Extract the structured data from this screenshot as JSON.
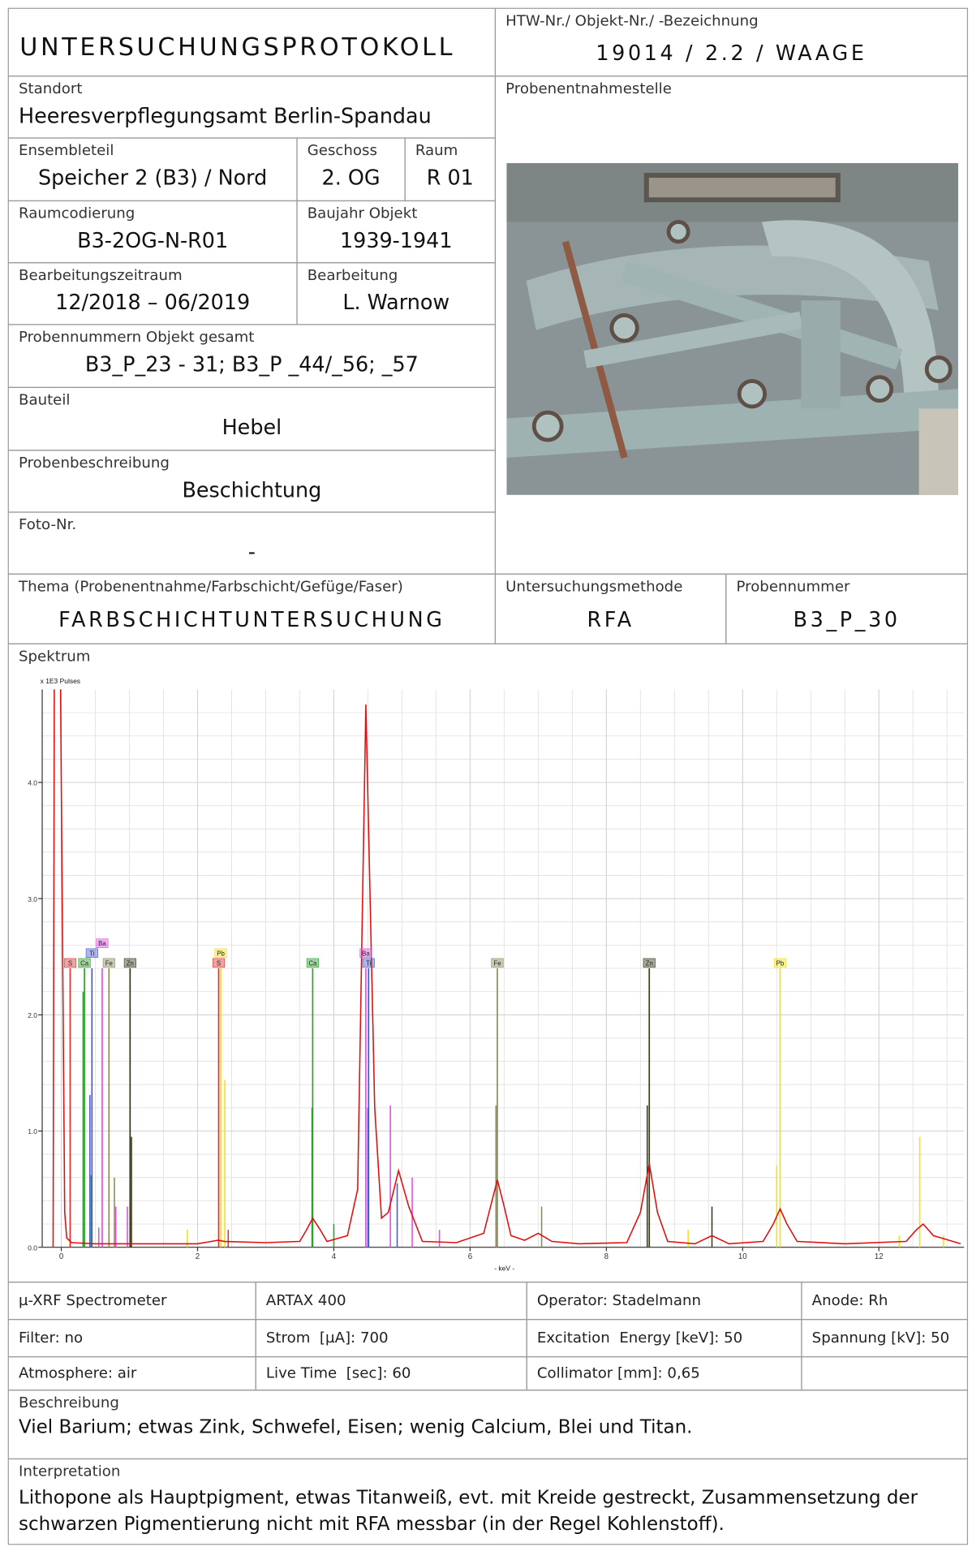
{
  "header": {
    "title": "UNTERSUCHUNGSPROTOKOLL",
    "object_label": "HTW-Nr./ Objekt-Nr./ -Bezeichnung",
    "object_value": "19014 / 2.2 / WAAGE"
  },
  "standort": {
    "label": "Standort",
    "value": "Heeresverpflegungsamt Berlin-Spandau"
  },
  "ensembleteil": {
    "label": "Ensembleteil",
    "value": "Speicher 2 (B3) / Nord"
  },
  "geschoss": {
    "label": "Geschoss",
    "value": "2. OG"
  },
  "raum": {
    "label": "Raum",
    "value": "R 01"
  },
  "raumcodierung": {
    "label": "Raumcodierung",
    "value": "B3-2OG-N-R01"
  },
  "baujahr": {
    "label": "Baujahr Objekt",
    "value": "1939-1941"
  },
  "zeitraum": {
    "label": "Bearbeitungszeitraum",
    "value": "12/2018 – 06/2019"
  },
  "bearbeitung": {
    "label": "Bearbeitung",
    "value": "L. Warnow"
  },
  "probennummern": {
    "label": "Probennummern Objekt gesamt",
    "value": "B3_P_23 - 31; B3_P _44/_56; _57"
  },
  "bauteil": {
    "label": "Bauteil",
    "value": "Hebel"
  },
  "probenbeschreibung": {
    "label": "Probenbeschreibung",
    "value": "Beschichtung"
  },
  "foto_nr": {
    "label": "Foto-Nr.",
    "value": "-"
  },
  "probenentnahmestelle": {
    "label": "Probenentnahmestelle"
  },
  "thema": {
    "label": "Thema (Probenentnahme/Farbschicht/Gefüge/Faser)",
    "value": "FARBSCHICHTUNTERSUCHUNG"
  },
  "methode": {
    "label": "Untersuchungsmethode",
    "value": "RFA"
  },
  "probennummer": {
    "label": "Probennummer",
    "value": "B3_P_30"
  },
  "chart_data": {
    "type": "line",
    "title": "Spektrum",
    "ylabel": "x 1E3 Pulses",
    "xlabel": "- keV -",
    "x": [
      -0.12,
      -0.1,
      -0.02,
      0.05,
      0.08,
      0.15,
      0.5,
      1.0,
      1.5,
      2.0,
      2.3,
      2.4,
      3.0,
      3.5,
      3.6,
      3.69,
      3.8,
      3.9,
      4.2,
      4.35,
      4.47,
      4.6,
      4.7,
      4.8,
      4.95,
      5.1,
      5.3,
      5.8,
      6.2,
      6.3,
      6.4,
      6.5,
      6.6,
      6.8,
      7.0,
      7.2,
      7.6,
      8.3,
      8.5,
      8.63,
      8.75,
      8.9,
      9.3,
      9.55,
      9.8,
      10.3,
      10.45,
      10.55,
      10.65,
      10.8,
      11.5,
      12.4,
      12.55,
      12.65,
      12.8,
      13.2
    ],
    "series": [
      {
        "color": "#e01010",
        "values": [
          0,
          5.5,
          5.5,
          0.3,
          0.08,
          0.04,
          0.03,
          0.03,
          0.03,
          0.03,
          0.06,
          0.05,
          0.04,
          0.05,
          0.15,
          0.25,
          0.15,
          0.05,
          0.1,
          0.5,
          4.67,
          1.2,
          0.25,
          0.3,
          0.66,
          0.35,
          0.05,
          0.04,
          0.12,
          0.35,
          0.58,
          0.35,
          0.1,
          0.06,
          0.12,
          0.05,
          0.03,
          0.04,
          0.3,
          0.72,
          0.3,
          0.05,
          0.03,
          0.1,
          0.03,
          0.05,
          0.2,
          0.33,
          0.2,
          0.05,
          0.03,
          0.05,
          0.15,
          0.2,
          0.1,
          0.03
        ]
      }
    ],
    "xlim": [
      -0.28,
      13.25
    ],
    "ylim": [
      0,
      4.8
    ],
    "xticks": [
      0,
      2,
      4,
      6,
      8,
      10,
      12
    ],
    "yticks": [
      {
        "value": 0,
        "label": "0.0"
      },
      {
        "value": 1,
        "label": "1.0"
      },
      {
        "value": 2,
        "label": "2.0"
      },
      {
        "value": 3,
        "label": "3.0"
      },
      {
        "value": 4,
        "label": "4.0"
      }
    ],
    "grid": true,
    "markers": [
      {
        "label": "S",
        "x": 0.13,
        "y": 2.4,
        "color": "#e03030"
      },
      {
        "label": "Ca",
        "x": 0.34,
        "y": 2.4,
        "color": "#30a030"
      },
      {
        "label": "Fe",
        "x": 0.7,
        "y": 2.4,
        "color": "#8c8c5a"
      },
      {
        "label": "Zn",
        "x": 1.01,
        "y": 2.4,
        "color": "#3c3c1e"
      },
      {
        "label": "Ti",
        "x": 0.45,
        "y": 2.4,
        "color": "#4a5ad0"
      },
      {
        "label": "Ba",
        "x": 0.6,
        "y": 2.4,
        "color": "#e050e0"
      },
      {
        "label": "S",
        "x": 2.31,
        "y": 2.4,
        "color": "#e03030"
      },
      {
        "label": "Pb",
        "x": 2.34,
        "y": 2.4,
        "color": "#f0e020"
      },
      {
        "label": "Ca",
        "x": 3.69,
        "y": 2.4,
        "color": "#30a030"
      },
      {
        "label": "Ti",
        "x": 4.51,
        "y": 2.4,
        "color": "#4a5ad0"
      },
      {
        "label": "Ba",
        "x": 4.47,
        "y": 2.4,
        "color": "#e050e0"
      },
      {
        "label": "Fe",
        "x": 6.4,
        "y": 2.4,
        "color": "#8c8c5a"
      },
      {
        "label": "Zn",
        "x": 8.63,
        "y": 2.4,
        "color": "#3c3c1e"
      },
      {
        "label": "Pb",
        "x": 10.55,
        "y": 2.4,
        "color": "#f0e020"
      }
    ],
    "lines": [
      {
        "x": 0.32,
        "y": 2.2,
        "color": "#30a030"
      },
      {
        "x": 0.42,
        "y": 1.31,
        "color": "#4a5ad0"
      },
      {
        "x": 0.44,
        "y": 0.62,
        "color": "#30a030"
      },
      {
        "x": 0.55,
        "y": 0.17,
        "color": "#e050e0"
      },
      {
        "x": 0.78,
        "y": 0.6,
        "color": "#8c8c5a"
      },
      {
        "x": 0.8,
        "y": 0.35,
        "color": "#e050e0"
      },
      {
        "x": 0.97,
        "y": 0.35,
        "color": "#e050e0"
      },
      {
        "x": 1.03,
        "y": 0.95,
        "color": "#3c3c1e"
      },
      {
        "x": 1.85,
        "y": 0.15,
        "color": "#f0e020"
      },
      {
        "x": 2.4,
        "y": 1.44,
        "color": "#f0e020"
      },
      {
        "x": 2.45,
        "y": 0.15,
        "color": "#e03030"
      },
      {
        "x": 3.68,
        "y": 1.2,
        "color": "#30a030"
      },
      {
        "x": 4.0,
        "y": 0.2,
        "color": "#30a030"
      },
      {
        "x": 4.5,
        "y": 1.2,
        "color": "#4a5ad0"
      },
      {
        "x": 4.83,
        "y": 1.22,
        "color": "#e050e0"
      },
      {
        "x": 4.93,
        "y": 0.55,
        "color": "#4a5ad0"
      },
      {
        "x": 5.15,
        "y": 0.6,
        "color": "#e050e0"
      },
      {
        "x": 5.55,
        "y": 0.15,
        "color": "#e050e0"
      },
      {
        "x": 6.38,
        "y": 1.22,
        "color": "#8c8c5a"
      },
      {
        "x": 7.05,
        "y": 0.35,
        "color": "#8c8c5a"
      },
      {
        "x": 8.6,
        "y": 1.22,
        "color": "#3c3c1e"
      },
      {
        "x": 9.2,
        "y": 0.15,
        "color": "#f0e020"
      },
      {
        "x": 9.55,
        "y": 0.35,
        "color": "#3c3c1e"
      },
      {
        "x": 10.5,
        "y": 0.7,
        "color": "#f0e020"
      },
      {
        "x": 12.3,
        "y": 0.1,
        "color": "#f0e020"
      },
      {
        "x": 12.6,
        "y": 0.95,
        "color": "#f0e020"
      },
      {
        "x": 12.95,
        "y": 0.1,
        "color": "#f0e020"
      }
    ]
  },
  "instrument": {
    "rows": [
      [
        "µ-XRF Spectrometer",
        "ARTAX 400",
        "Operator: Stadelmann",
        "Anode: Rh"
      ],
      [
        "Filter: no",
        "Strom  [µA]: 700",
        "Excitation  Energy [keV]: 50",
        "Spannung [kV]: 50"
      ],
      [
        "Atmosphere: air",
        "Live Time  [sec]: 60",
        "Collimator [mm]: 0,65"
      ]
    ]
  },
  "beschreibung": {
    "label": "Beschreibung",
    "value": "Viel Barium; etwas Zink, Schwefel, Eisen; wenig Calcium, Blei und Titan."
  },
  "interpretation": {
    "label": "Interpretation",
    "value": "Lithopone als Hauptpigment, etwas Titanweiß, evt. mit Kreide gestreckt, Zusammensetzung der schwarzen Pigmentierung nicht mit RFA messbar (in der Regel Kohlenstoff)."
  }
}
